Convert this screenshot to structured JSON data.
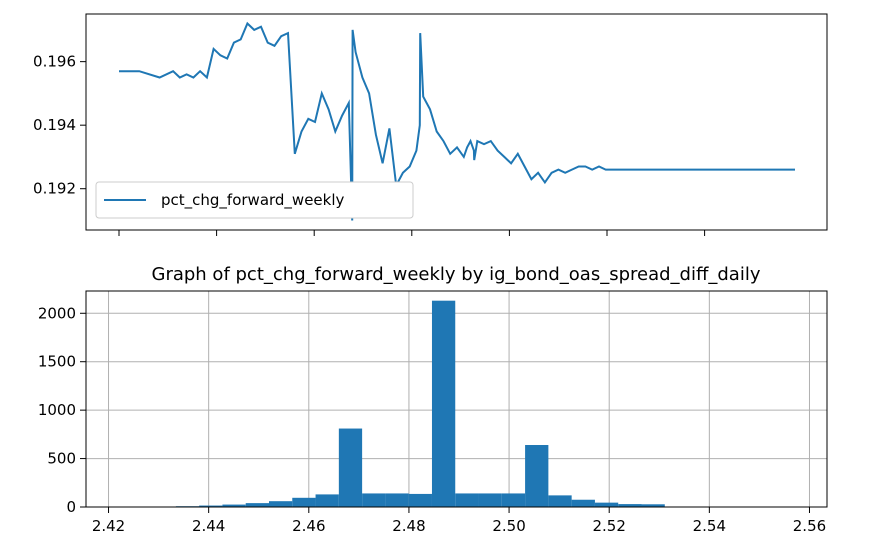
{
  "chart_data": [
    {
      "type": "line",
      "title": "",
      "xlabel": "",
      "ylabel": "",
      "ylim": [
        0.1907,
        0.1975
      ],
      "y_ticks": [
        0.192,
        0.194,
        0.196
      ],
      "y_tick_labels": [
        "0.192",
        "0.194",
        "0.196"
      ],
      "x_ticks_count": 7,
      "x_tick_labels_shown": false,
      "grid": false,
      "legend": {
        "placement": "lower-left",
        "entries": [
          "pct_chg_forward_weekly"
        ]
      },
      "series": [
        {
          "name": "pct_chg_forward_weekly",
          "color": "#1f77b4",
          "x": [
            0,
            0.03,
            0.06,
            0.08,
            0.09,
            0.1,
            0.11,
            0.12,
            0.13,
            0.14,
            0.15,
            0.16,
            0.17,
            0.18,
            0.19,
            0.2,
            0.21,
            0.22,
            0.23,
            0.24,
            0.25,
            0.26,
            0.27,
            0.28,
            0.29,
            0.3,
            0.31,
            0.32,
            0.33,
            0.34,
            0.345,
            0.3455,
            0.35,
            0.36,
            0.37,
            0.38,
            0.39,
            0.4,
            0.41,
            0.42,
            0.43,
            0.44,
            0.445,
            0.4455,
            0.45,
            0.46,
            0.47,
            0.48,
            0.49,
            0.5,
            0.51,
            0.515,
            0.52,
            0.525,
            0.5255,
            0.53,
            0.54,
            0.55,
            0.56,
            0.57,
            0.58,
            0.59,
            0.6,
            0.61,
            0.62,
            0.63,
            0.64,
            0.65,
            0.66,
            0.67,
            0.68,
            0.69,
            0.7,
            0.71,
            0.72,
            0.73,
            0.74,
            0.75,
            0.76,
            0.77,
            0.78,
            0.79,
            0.8,
            0.81,
            0.82,
            0.83,
            0.84,
            0.85,
            0.86,
            0.88,
            0.9,
            0.93,
            0.96,
            1.0
          ],
          "y": [
            0.1957,
            0.1957,
            0.1955,
            0.1957,
            0.1955,
            0.1956,
            0.1955,
            0.1957,
            0.1955,
            0.1964,
            0.1962,
            0.1961,
            0.1966,
            0.1967,
            0.1972,
            0.197,
            0.1971,
            0.1966,
            0.1965,
            0.1968,
            0.1969,
            0.1931,
            0.1938,
            0.1942,
            0.1941,
            0.195,
            0.1945,
            0.1938,
            0.1943,
            0.1947,
            0.191,
            0.197,
            0.1963,
            0.1955,
            0.195,
            0.1937,
            0.1928,
            0.1939,
            0.1921,
            0.1925,
            0.1927,
            0.1932,
            0.194,
            0.1969,
            0.1949,
            0.1945,
            0.1938,
            0.1935,
            0.1931,
            0.1933,
            0.193,
            0.1933,
            0.1935,
            0.1932,
            0.1929,
            0.1935,
            0.1934,
            0.1935,
            0.1932,
            0.193,
            0.1928,
            0.1931,
            0.1927,
            0.1923,
            0.1925,
            0.1922,
            0.1925,
            0.1926,
            0.1925,
            0.1926,
            0.1927,
            0.1927,
            0.1926,
            0.1927,
            0.1926,
            0.1926,
            0.1926,
            0.1926,
            0.1926,
            0.1926,
            0.1926,
            0.1926,
            0.1926,
            0.1926,
            0.1926,
            0.1926,
            0.1926,
            0.1926,
            0.1926,
            0.1926,
            0.1926,
            0.1926,
            0.1926,
            0.1926
          ]
        }
      ]
    },
    {
      "type": "bar",
      "title": "Graph of pct_chg_forward_weekly by ig_bond_oas_spread_diff_daily",
      "xlabel": "",
      "ylabel": "",
      "xlim": [
        2.4155,
        2.5635
      ],
      "ylim": [
        0,
        2230
      ],
      "x_ticks": [
        2.42,
        2.44,
        2.46,
        2.48,
        2.5,
        2.52,
        2.54,
        2.56
      ],
      "x_tick_labels": [
        "2.42",
        "2.44",
        "2.46",
        "2.48",
        "2.50",
        "2.52",
        "2.54",
        "2.56"
      ],
      "y_ticks": [
        0,
        500,
        1000,
        1500,
        2000
      ],
      "y_tick_labels": [
        "0",
        "500",
        "1000",
        "1500",
        "2000"
      ],
      "grid": true,
      "bin_width": 0.00465,
      "bin_starts": [
        2.4195,
        2.42415,
        2.4288,
        2.43345,
        2.4381,
        2.44275,
        2.4474,
        2.45205,
        2.4567,
        2.46135,
        2.466,
        2.47065,
        2.4753,
        2.47995,
        2.4846,
        2.48925,
        2.4939,
        2.49855,
        2.5032,
        2.50785,
        2.5125,
        2.51715,
        2.5218,
        2.52645,
        2.5311,
        2.53575,
        2.5404,
        2.54505,
        2.5497,
        2.55435
      ],
      "values": [
        2,
        3,
        5,
        8,
        15,
        25,
        40,
        60,
        95,
        130,
        810,
        140,
        140,
        135,
        2130,
        140,
        140,
        140,
        640,
        120,
        75,
        45,
        30,
        28,
        4,
        3,
        2,
        2,
        2,
        1
      ],
      "color": "#1f77b4"
    }
  ]
}
